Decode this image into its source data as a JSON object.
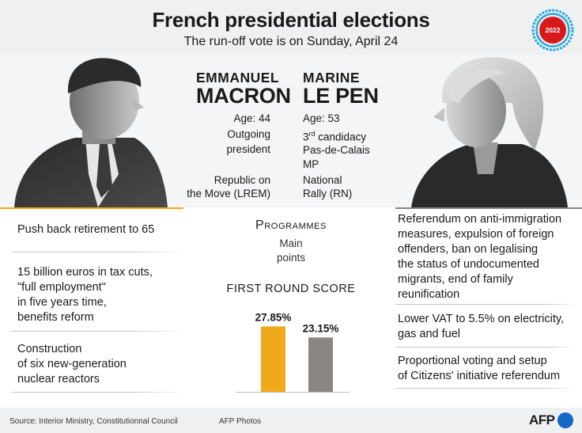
{
  "header": {
    "title": "French presidential elections",
    "subtitle": "The run-off vote is on Sunday, April 24",
    "badge_year": "2022"
  },
  "candidates": {
    "macron": {
      "first_name": "EMMANUEL",
      "last_name": "MACRON",
      "age": "Age: 44",
      "role_line1": "Outgoing",
      "role_line2": "president",
      "party_line1": "Republic on",
      "party_line2": "the Move (LREM)"
    },
    "lepen": {
      "first_name": "MARINE",
      "last_name": "LE PEN",
      "age": "Age: 53",
      "candidacy_number": "3",
      "candidacy_suffix": "rd",
      "candidacy_word": " candidacy",
      "role_line1": "Pas-de-Calais",
      "role_line2": "MP",
      "party_line1": "National",
      "party_line2": "Rally (RN)"
    }
  },
  "programmes": {
    "title": "Programmes",
    "subtitle_line1": "Main",
    "subtitle_line2": "points"
  },
  "macron_points": [
    {
      "lines": [
        "Push back retirement to 65"
      ]
    },
    {
      "lines": [
        "15 billion euros in tax cuts,",
        "\"full employment\"",
        "in five years time,",
        "benefits reform"
      ]
    },
    {
      "lines": [
        "Construction",
        "of six new-generation",
        "nuclear reactors"
      ]
    }
  ],
  "lepen_points": [
    {
      "lines": [
        "Referendum on anti-immigration",
        "measures, expulsion of foreign",
        "offenders, ban on legalising",
        "the status of undocumented",
        "migrants, end of family",
        "reunification"
      ]
    },
    {
      "lines": [
        "Lower VAT to 5.5% on electricity,",
        "gas and fuel"
      ]
    },
    {
      "lines": [
        "Proportional voting and setup",
        "of Citizens' initiative referendum"
      ]
    }
  ],
  "chart_data": {
    "type": "bar",
    "title": "FIRST ROUND SCORE",
    "categories": [
      "Emmanuel Macron",
      "Marine Le Pen"
    ],
    "values": [
      27.85,
      23.15
    ],
    "value_labels": [
      "27.85%",
      "23.15%"
    ],
    "colors": [
      "#f0a91b",
      "#8c8682"
    ],
    "ylim": [
      0,
      30
    ],
    "grid": false,
    "legend": "none"
  },
  "footer": {
    "source": "Source: Interior Ministry, Constitutionnal Council",
    "photos": "AFP Photos",
    "logo": "AFP"
  },
  "colors": {
    "macron_accent": "#f0a91b",
    "lepen_accent": "#8c8682",
    "badge_red": "#d7191c",
    "badge_ring": "#29a8d9"
  }
}
